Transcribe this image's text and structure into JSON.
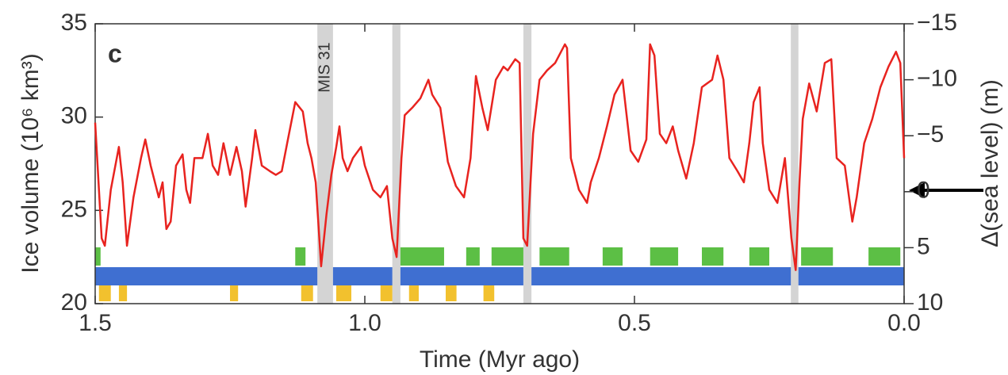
{
  "chart_data": {
    "type": "line",
    "panel_label": "c",
    "annotation": "MIS 31",
    "xlabel": "Time (Myr ago)",
    "ylabel": "Ice volume (10⁶ km³)",
    "y2label": "Δ(sea level) (m)",
    "xlim": [
      1.5,
      0
    ],
    "xticks": [
      1.5,
      {
        "value": 1,
        "label": "1.0"
      },
      0.5,
      {
        "value": 0,
        "label": "0.0"
      }
    ],
    "ylim": [
      20,
      35
    ],
    "yticks": [
      20,
      25,
      30,
      35
    ],
    "y2lim": [
      10,
      -15
    ],
    "y2ticks": [
      {
        "value": -15,
        "label": "−15"
      },
      {
        "value": -10,
        "label": "−10"
      },
      {
        "value": -5,
        "label": "−5"
      },
      0,
      5,
      10
    ],
    "shaded": {
      "color": "#d4d4d4",
      "intervals": [
        [
          1.088,
          1.059
        ],
        [
          0.949,
          0.934
        ],
        [
          0.706,
          0.691
        ],
        [
          0.21,
          0.196
        ]
      ]
    },
    "strips": [
      {
        "color": "#f2c12e",
        "intervals": [
          [
            1.493,
            1.471
          ],
          [
            1.456,
            1.441
          ],
          [
            1.25,
            1.235
          ],
          [
            1.118,
            1.096
          ],
          [
            1.053,
            1.025
          ],
          [
            0.971,
            0.949
          ],
          [
            0.918,
            0.9
          ],
          [
            0.85,
            0.83
          ],
          [
            0.78,
            0.76
          ]
        ]
      },
      {
        "color": "#3f6fd1",
        "intervals": [
          [
            1.5,
            1.088
          ],
          [
            1.059,
            0.949
          ],
          [
            0.934,
            0.706
          ],
          [
            0.691,
            0.21
          ],
          [
            0.196,
            0
          ]
        ]
      },
      {
        "color": "#5cbf45",
        "intervals": [
          [
            1.5,
            1.49
          ],
          [
            1.129,
            1.11
          ],
          [
            0.934,
            0.853
          ],
          [
            0.812,
            0.787
          ],
          [
            0.765,
            0.706
          ],
          [
            0.676,
            0.621
          ],
          [
            0.559,
            0.522
          ],
          [
            0.471,
            0.419
          ],
          [
            0.375,
            0.335
          ],
          [
            0.287,
            0.25
          ],
          [
            0.191,
            0.132
          ],
          [
            0.066,
            0.007
          ]
        ]
      }
    ],
    "series": [
      {
        "color": "#e8231f",
        "x": [
          1.5,
          1.488,
          1.482,
          1.471,
          1.456,
          1.449,
          1.441,
          1.429,
          1.415,
          1.407,
          1.397,
          1.382,
          1.375,
          1.368,
          1.36,
          1.35,
          1.338,
          1.331,
          1.324,
          1.316,
          1.301,
          1.291,
          1.282,
          1.272,
          1.262,
          1.25,
          1.238,
          1.228,
          1.221,
          1.209,
          1.203,
          1.191,
          1.176,
          1.165,
          1.154,
          1.144,
          1.129,
          1.115,
          1.106,
          1.099,
          1.091,
          1.081,
          1.071,
          1.062,
          1.053,
          1.047,
          1.041,
          1.032,
          1.022,
          1.007,
          1.0,
          0.985,
          0.971,
          0.959,
          0.949,
          0.941,
          0.932,
          0.926,
          0.912,
          0.897,
          0.882,
          0.875,
          0.86,
          0.846,
          0.831,
          0.816,
          0.804,
          0.794,
          0.782,
          0.772,
          0.757,
          0.743,
          0.735,
          0.721,
          0.713,
          0.706,
          0.699,
          0.688,
          0.676,
          0.662,
          0.647,
          0.629,
          0.625,
          0.618,
          0.603,
          0.588,
          0.581,
          0.566,
          0.551,
          0.537,
          0.522,
          0.507,
          0.493,
          0.478,
          0.471,
          0.463,
          0.453,
          0.441,
          0.429,
          0.419,
          0.404,
          0.39,
          0.375,
          0.356,
          0.346,
          0.335,
          0.324,
          0.309,
          0.297,
          0.287,
          0.279,
          0.268,
          0.262,
          0.25,
          0.235,
          0.221,
          0.209,
          0.201,
          0.194,
          0.188,
          0.176,
          0.162,
          0.147,
          0.135,
          0.125,
          0.11,
          0.096,
          0.088,
          0.074,
          0.059,
          0.044,
          0.029,
          0.015,
          0.007,
          0
        ],
        "values": [
          29.7,
          23.5,
          23.1,
          26.1,
          28.4,
          26.5,
          23.1,
          25.7,
          27.8,
          28.8,
          27.4,
          25.7,
          26.5,
          24.0,
          24.4,
          27.4,
          28.0,
          26.1,
          25.4,
          27.8,
          27.8,
          29.1,
          27.4,
          26.9,
          28.6,
          26.9,
          28.4,
          27.1,
          25.2,
          27.8,
          29.3,
          27.4,
          27.1,
          26.9,
          27.1,
          28.6,
          30.8,
          30.3,
          28.6,
          27.8,
          26.5,
          22.0,
          24.8,
          26.9,
          28.4,
          29.5,
          27.8,
          27.1,
          27.8,
          28.4,
          27.4,
          26.1,
          25.7,
          26.3,
          23.5,
          22.5,
          27.8,
          30.1,
          30.5,
          31.0,
          32.0,
          31.2,
          30.5,
          27.6,
          26.3,
          25.7,
          27.8,
          32.2,
          30.5,
          29.3,
          32.0,
          32.7,
          32.5,
          33.1,
          32.9,
          23.5,
          23.1,
          29.1,
          32.0,
          32.5,
          32.9,
          33.9,
          33.7,
          27.8,
          26.1,
          25.4,
          26.5,
          27.8,
          29.5,
          31.2,
          32.0,
          28.2,
          27.6,
          28.8,
          33.9,
          33.3,
          29.1,
          28.6,
          29.5,
          28.2,
          26.7,
          28.6,
          31.6,
          32.0,
          33.3,
          32.0,
          27.8,
          27.1,
          26.5,
          28.6,
          30.8,
          31.6,
          28.6,
          26.1,
          25.4,
          27.8,
          23.5,
          21.8,
          26.5,
          29.9,
          31.8,
          30.3,
          32.9,
          33.1,
          27.8,
          27.4,
          24.4,
          25.7,
          28.6,
          29.9,
          31.6,
          32.7,
          33.5,
          32.9,
          27.8
        ]
      }
    ]
  }
}
